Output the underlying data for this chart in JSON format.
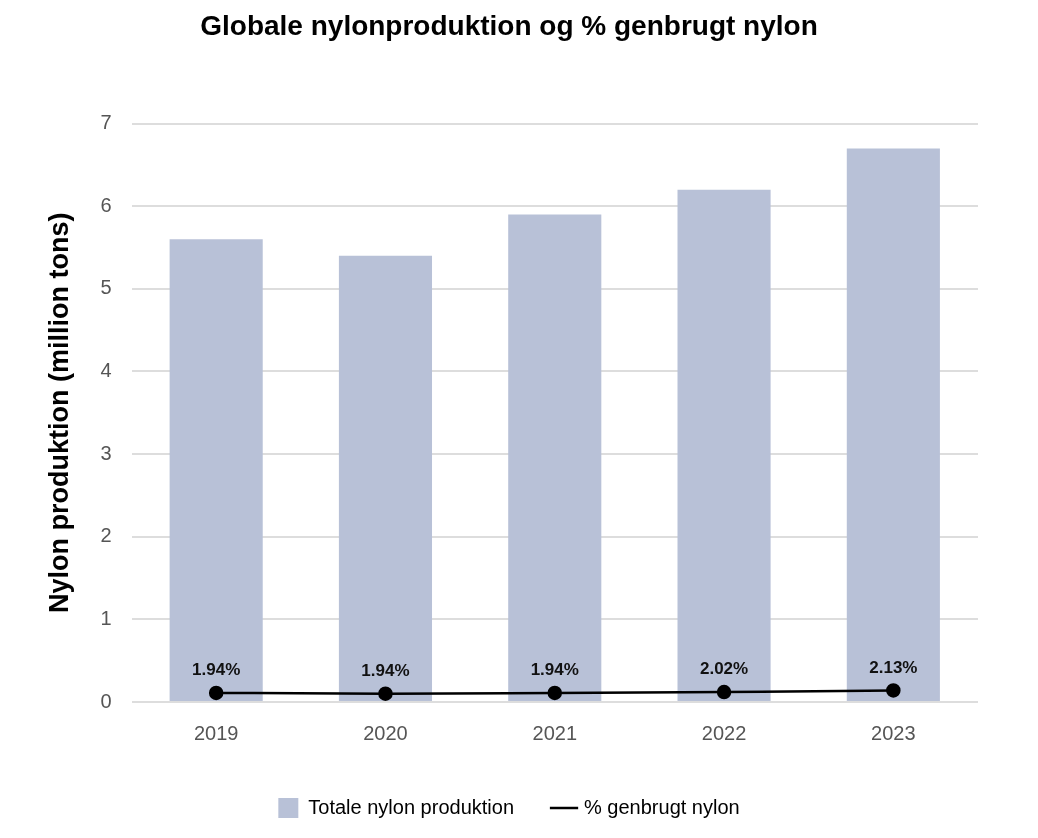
{
  "chart_data": {
    "type": "bar",
    "title": "Globale nylonproduktion og % genbrugt nylon",
    "ylabel": "Nylon produktion (million tons)",
    "categories": [
      "2019",
      "2020",
      "2021",
      "2022",
      "2023"
    ],
    "series": [
      {
        "name": "Totale nylon produktion",
        "color": "#b8c1d7",
        "values": [
          5.6,
          5.4,
          5.9,
          6.2,
          6.7
        ]
      },
      {
        "name": "% genbrugt nylon",
        "type": "line",
        "color": "#000000",
        "marker": "circle",
        "line_style": "solid",
        "values": [
          0.11,
          0.1,
          0.11,
          0.12,
          0.14
        ]
      }
    ],
    "annotations": [
      {
        "text": "1.94%",
        "x": "2019",
        "y": 0.11
      },
      {
        "text": "1.94%",
        "x": "2020",
        "y": 0.1
      },
      {
        "text": "1.94%",
        "x": "2021",
        "y": 0.11
      },
      {
        "text": "2.02%",
        "x": "2022",
        "y": 0.12
      },
      {
        "text": "2.13%",
        "x": "2023",
        "y": 0.14
      }
    ],
    "ylim": [
      0,
      7
    ],
    "yticks": [
      0,
      1,
      2,
      3,
      4,
      5,
      6,
      7
    ],
    "grid": "y",
    "legend": "bottom"
  }
}
